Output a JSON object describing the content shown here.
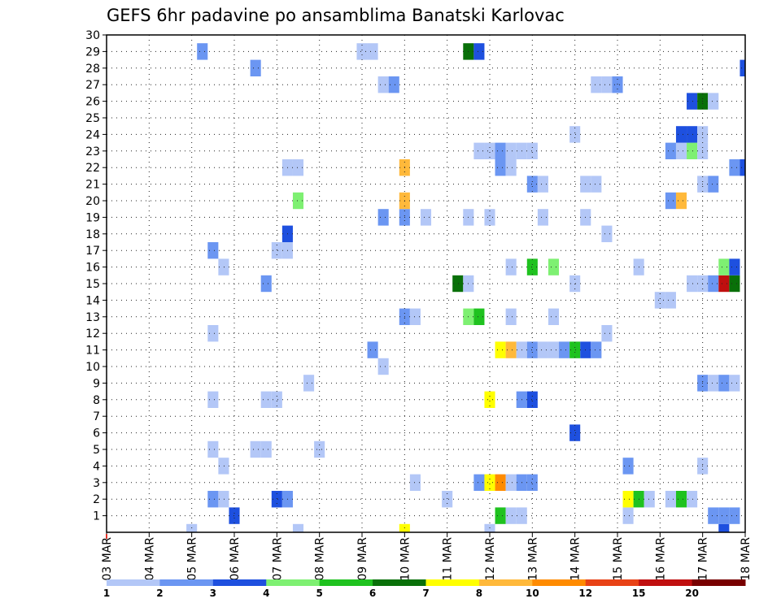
{
  "chart_data": {
    "type": "heatmap",
    "title": "GEFS 6hr padavine po ansamblima Banatski Karlovac",
    "xlabel": "",
    "ylabel": "",
    "x_tick_labels": [
      "03 MAR",
      "04 MAR",
      "05 MAR",
      "06 MAR",
      "07 MAR",
      "08 MAR",
      "09 MAR",
      "10 MAR",
      "11 MAR",
      "12 MAR",
      "13 MAR",
      "14 MAR",
      "15 MAR",
      "16 MAR",
      "17 MAR",
      "18 MAR"
    ],
    "y_tick_labels": [
      "1",
      "2",
      "3",
      "4",
      "5",
      "6",
      "7",
      "8",
      "9",
      "10",
      "11",
      "12",
      "13",
      "14",
      "15",
      "16",
      "17",
      "18",
      "19",
      "20",
      "21",
      "22",
      "23",
      "24",
      "25",
      "26",
      "27",
      "28",
      "29",
      "30"
    ],
    "ylim": [
      0,
      30
    ],
    "xlim_steps": [
      0,
      60
    ],
    "steps_per_day": 4,
    "grid": true,
    "colorbar": {
      "labels": [
        "1",
        "2",
        "3",
        "4",
        "5",
        "6",
        "7",
        "8",
        "10",
        "12",
        "15",
        "20"
      ],
      "colors": [
        "#b3c7f7",
        "#6b96f2",
        "#1e50df",
        "#7ef072",
        "#1fc21f",
        "#097009",
        "#ffff00",
        "#ffb93b",
        "#ff8b00",
        "#e84216",
        "#c00f0f",
        "#780000"
      ]
    },
    "cells": [
      [
        0,
        8,
        1
      ],
      [
        0,
        18,
        1
      ],
      [
        0,
        28,
        7
      ],
      [
        0,
        36,
        1
      ],
      [
        0,
        58,
        3
      ],
      [
        1,
        12,
        3
      ],
      [
        1,
        37,
        5
      ],
      [
        1,
        38,
        1
      ],
      [
        1,
        39,
        1
      ],
      [
        1,
        49,
        1
      ],
      [
        1,
        57,
        2
      ],
      [
        1,
        58,
        2
      ],
      [
        1,
        59,
        2
      ],
      [
        2,
        10,
        2
      ],
      [
        2,
        11,
        1
      ],
      [
        2,
        16,
        3
      ],
      [
        2,
        17,
        2
      ],
      [
        2,
        32,
        1
      ],
      [
        2,
        49,
        7
      ],
      [
        2,
        50,
        5
      ],
      [
        2,
        51,
        1
      ],
      [
        2,
        53,
        1
      ],
      [
        2,
        54,
        5
      ],
      [
        2,
        55,
        1
      ],
      [
        3,
        29,
        1
      ],
      [
        3,
        35,
        2
      ],
      [
        3,
        36,
        7
      ],
      [
        3,
        37,
        9
      ],
      [
        3,
        38,
        1
      ],
      [
        3,
        39,
        2
      ],
      [
        3,
        40,
        2
      ],
      [
        4,
        11,
        1
      ],
      [
        4,
        49,
        2
      ],
      [
        4,
        56,
        1
      ],
      [
        5,
        10,
        1
      ],
      [
        5,
        14,
        1
      ],
      [
        5,
        15,
        1
      ],
      [
        5,
        20,
        1
      ],
      [
        6,
        44,
        3
      ],
      [
        8,
        10,
        1
      ],
      [
        8,
        15,
        1
      ],
      [
        8,
        16,
        1
      ],
      [
        8,
        36,
        7
      ],
      [
        8,
        39,
        2
      ],
      [
        8,
        40,
        3
      ],
      [
        9,
        19,
        1
      ],
      [
        9,
        56,
        2
      ],
      [
        9,
        57,
        1
      ],
      [
        9,
        58,
        2
      ],
      [
        9,
        59,
        1
      ],
      [
        10,
        26,
        1
      ],
      [
        11,
        25,
        2
      ],
      [
        11,
        37,
        7
      ],
      [
        11,
        38,
        8
      ],
      [
        11,
        39,
        1
      ],
      [
        11,
        40,
        2
      ],
      [
        11,
        41,
        1
      ],
      [
        11,
        42,
        1
      ],
      [
        11,
        43,
        2
      ],
      [
        11,
        44,
        5
      ],
      [
        11,
        45,
        3
      ],
      [
        11,
        46,
        2
      ],
      [
        12,
        10,
        1
      ],
      [
        12,
        47,
        1
      ],
      [
        13,
        28,
        2
      ],
      [
        13,
        29,
        1
      ],
      [
        13,
        34,
        4
      ],
      [
        13,
        35,
        5
      ],
      [
        13,
        38,
        1
      ],
      [
        13,
        42,
        1
      ],
      [
        14,
        52,
        1
      ],
      [
        14,
        53,
        1
      ],
      [
        15,
        15,
        2
      ],
      [
        15,
        33,
        6
      ],
      [
        15,
        34,
        1
      ],
      [
        15,
        44,
        1
      ],
      [
        15,
        55,
        1
      ],
      [
        15,
        56,
        1
      ],
      [
        15,
        57,
        2
      ],
      [
        15,
        58,
        11
      ],
      [
        15,
        59,
        6
      ],
      [
        16,
        11,
        1
      ],
      [
        16,
        38,
        1
      ],
      [
        16,
        40,
        5
      ],
      [
        16,
        42,
        4
      ],
      [
        16,
        50,
        1
      ],
      [
        16,
        58,
        4
      ],
      [
        16,
        59,
        3
      ],
      [
        17,
        10,
        2
      ],
      [
        17,
        16,
        1
      ],
      [
        17,
        17,
        1
      ],
      [
        18,
        17,
        3
      ],
      [
        18,
        47,
        1
      ],
      [
        19,
        26,
        2
      ],
      [
        19,
        28,
        2
      ],
      [
        19,
        30,
        1
      ],
      [
        19,
        34,
        1
      ],
      [
        19,
        36,
        1
      ],
      [
        19,
        41,
        1
      ],
      [
        19,
        45,
        1
      ],
      [
        20,
        18,
        4
      ],
      [
        20,
        28,
        8
      ],
      [
        20,
        53,
        2
      ],
      [
        20,
        54,
        8
      ],
      [
        21,
        40,
        2
      ],
      [
        21,
        41,
        1
      ],
      [
        21,
        45,
        1
      ],
      [
        21,
        46,
        1
      ],
      [
        21,
        56,
        1
      ],
      [
        21,
        57,
        2
      ],
      [
        22,
        17,
        1
      ],
      [
        22,
        18,
        1
      ],
      [
        22,
        28,
        8
      ],
      [
        22,
        37,
        2
      ],
      [
        22,
        38,
        1
      ],
      [
        22,
        59,
        2
      ],
      [
        22,
        60,
        3
      ],
      [
        23,
        35,
        1
      ],
      [
        23,
        36,
        1
      ],
      [
        23,
        37,
        2
      ],
      [
        23,
        38,
        1
      ],
      [
        23,
        39,
        1
      ],
      [
        23,
        40,
        1
      ],
      [
        23,
        53,
        2
      ],
      [
        23,
        54,
        1
      ],
      [
        23,
        55,
        4
      ],
      [
        23,
        56,
        1
      ],
      [
        24,
        44,
        1
      ],
      [
        24,
        54,
        3
      ],
      [
        24,
        55,
        3
      ],
      [
        24,
        56,
        1
      ],
      [
        26,
        55,
        3
      ],
      [
        26,
        56,
        6
      ],
      [
        26,
        57,
        1
      ],
      [
        27,
        26,
        1
      ],
      [
        27,
        27,
        2
      ],
      [
        27,
        46,
        1
      ],
      [
        27,
        47,
        1
      ],
      [
        27,
        48,
        2
      ],
      [
        28,
        14,
        2
      ],
      [
        28,
        60,
        3
      ],
      [
        29,
        9,
        2
      ],
      [
        29,
        24,
        1
      ],
      [
        29,
        25,
        1
      ],
      [
        29,
        34,
        6
      ],
      [
        29,
        35,
        3
      ]
    ]
  }
}
